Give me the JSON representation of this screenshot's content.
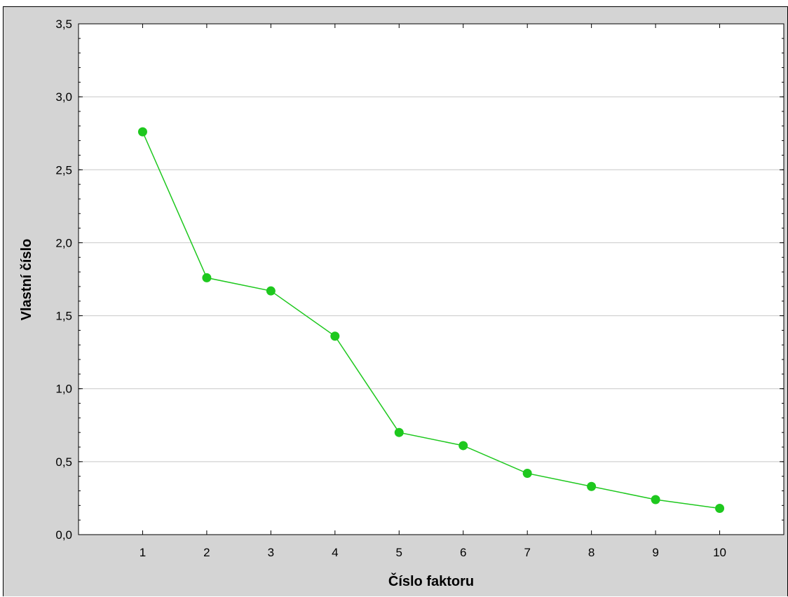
{
  "chart_data": {
    "type": "line",
    "title": "",
    "xlabel": "Číslo faktoru",
    "ylabel": "Vlastní číslo",
    "categories": [
      "1",
      "2",
      "3",
      "4",
      "5",
      "6",
      "7",
      "8",
      "9",
      "10"
    ],
    "x": [
      1,
      2,
      3,
      4,
      5,
      6,
      7,
      8,
      9,
      10
    ],
    "series": [
      {
        "values": [
          2.76,
          1.76,
          1.67,
          1.36,
          0.7,
          0.61,
          0.42,
          0.33,
          0.24,
          0.18
        ]
      }
    ],
    "xlim": [
      0,
      11
    ],
    "ylim": [
      0,
      3.5
    ],
    "yticks": [
      0,
      0.5,
      1.0,
      1.5,
      2.0,
      2.5,
      3.0,
      3.5
    ],
    "ytick_labels": [
      "0,0",
      "0,5",
      "1,0",
      "1,5",
      "2,0",
      "2,5",
      "3,0",
      "3,5"
    ],
    "grid": "horizontal",
    "colors": {
      "series": "#1ec81e",
      "grid": "#c8c8c8",
      "plot_background": "#ffffff",
      "frame_background": "#d4d4d4"
    },
    "legend": "none"
  }
}
